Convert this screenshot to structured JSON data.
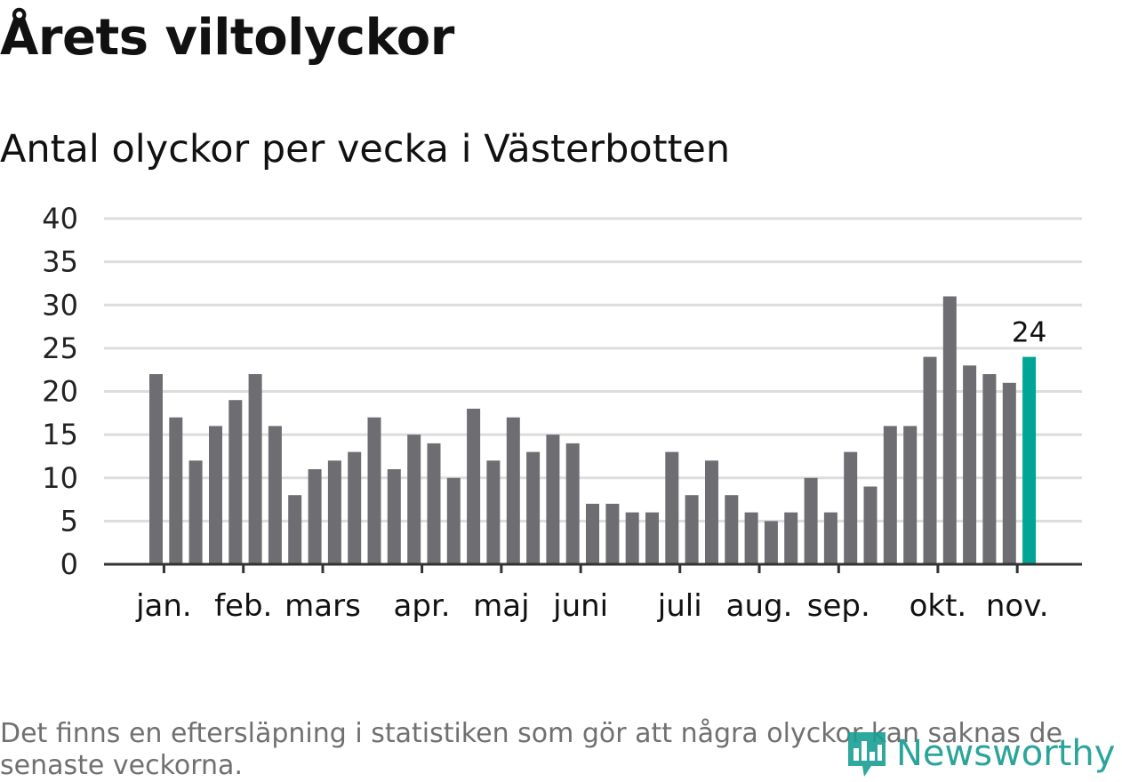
{
  "header": {
    "title": "Årets viltolyckor",
    "subtitle": "Antal olyckor per vecka i Västerbotten"
  },
  "footer": {
    "note": "Det finns en eftersläpning i statistiken som gör att några olyckor kan saknas de senaste veckorna.",
    "logo_text": "Newsworthy"
  },
  "colors": {
    "bar": "#6e6d72",
    "highlight": "#00a596",
    "grid": "#dddddd",
    "axis": "#333333"
  },
  "chart_data": {
    "type": "bar",
    "title": "Årets viltolyckor",
    "subtitle": "Antal olyckor per vecka i Västerbotten",
    "xlabel": "",
    "ylabel": "",
    "ylim": [
      0,
      40
    ],
    "yticks": [
      "0",
      "5",
      "10",
      "15",
      "20",
      "25",
      "30",
      "35",
      "40"
    ],
    "values": [
      22,
      17,
      12,
      16,
      19,
      22,
      16,
      8,
      11,
      12,
      13,
      17,
      11,
      15,
      14,
      10,
      18,
      12,
      17,
      13,
      15,
      14,
      7,
      7,
      6,
      6,
      13,
      8,
      12,
      8,
      6,
      5,
      6,
      10,
      6,
      13,
      9,
      16,
      16,
      24,
      31,
      23,
      22,
      21,
      24
    ],
    "highlight_index": 44,
    "highlight_label": "24",
    "month_labels": [
      {
        "label": "jan.",
        "bar_index": 0.4
      },
      {
        "label": "feb.",
        "bar_index": 4.4
      },
      {
        "label": "mars",
        "bar_index": 8.4
      },
      {
        "label": "apr.",
        "bar_index": 13.4
      },
      {
        "label": "maj",
        "bar_index": 17.4
      },
      {
        "label": "juni",
        "bar_index": 21.4
      },
      {
        "label": "juli",
        "bar_index": 26.4
      },
      {
        "label": "aug.",
        "bar_index": 30.4
      },
      {
        "label": "sep.",
        "bar_index": 34.4
      },
      {
        "label": "okt.",
        "bar_index": 39.4
      },
      {
        "label": "nov.",
        "bar_index": 43.4
      }
    ],
    "grid": true
  }
}
